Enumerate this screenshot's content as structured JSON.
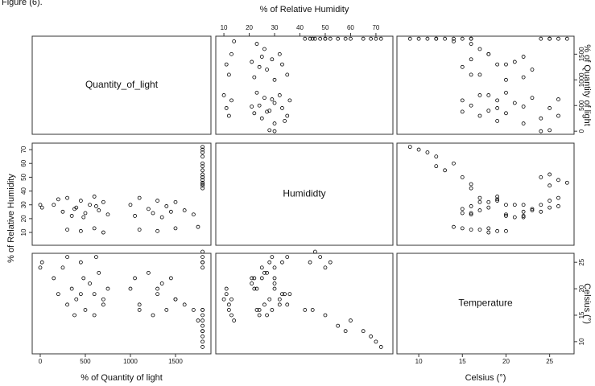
{
  "chart_data": {
    "type": "scatter",
    "caption": "Figure (6).",
    "color": "#000000",
    "variables": [
      "Quantity_of_light",
      "Humididty",
      "Temperature"
    ],
    "data": [
      [
        150,
        250,
        300,
        350,
        400,
        450,
        500,
        550,
        600,
        650,
        700,
        750,
        200,
        380,
        620,
        480,
        300,
        450,
        600,
        700,
        1100,
        1300,
        1500,
        1750,
        1000,
        1050,
        1100,
        1200,
        1250,
        1300,
        1350,
        1400,
        1450,
        1500,
        1600,
        1700,
        1800,
        1800,
        1800,
        1800,
        1800,
        1800,
        1800,
        1800,
        1800,
        1800,
        1800,
        1800,
        1800,
        1800,
        1800,
        0,
        20
      ],
      [
        30,
        25,
        35,
        22,
        28,
        33,
        24,
        30,
        36,
        26,
        32,
        23,
        34,
        27,
        29,
        21,
        12,
        11,
        13,
        10,
        12,
        11,
        13,
        14,
        30,
        22,
        35,
        27,
        24,
        33,
        21,
        29,
        25,
        32,
        26,
        23,
        60,
        65,
        70,
        72,
        55,
        50,
        42,
        68,
        58,
        45,
        48,
        52,
        46,
        50,
        44,
        30,
        28
      ],
      [
        22,
        24,
        26,
        20,
        18,
        25,
        16,
        21,
        19,
        23,
        17,
        20,
        19,
        15,
        26,
        22,
        17,
        19,
        15,
        18,
        16,
        20,
        18,
        14,
        20,
        22,
        17,
        23,
        15,
        19,
        21,
        16,
        22,
        18,
        17,
        16,
        14,
        12,
        10,
        9,
        13,
        15,
        16,
        11,
        12,
        16,
        26,
        25,
        27,
        24,
        25,
        24,
        25
      ]
    ],
    "columns": [
      {
        "xlim": [
          -89,
          1893
        ],
        "xticks": [
          0,
          500,
          1000,
          1500
        ],
        "xlabel": "% of Quantity of light",
        "side": "bottom"
      },
      {
        "xlim": [
          6.8,
          76.7
        ],
        "xticks": [
          10,
          20,
          30,
          40,
          50,
          60,
          70
        ],
        "xlabel": "% of Relative Humidity",
        "side": "top"
      },
      {
        "xlim": [
          7.5,
          27.8
        ],
        "xticks": [
          10,
          15,
          20,
          25
        ],
        "xlabel": "Celsius (°)",
        "side": "bottom"
      }
    ],
    "rows": [
      {
        "ylim": [
          -60,
          1850
        ],
        "yticks": [
          0,
          500,
          1000,
          1500
        ],
        "ylabel": "% of Quantity of light",
        "side": "right"
      },
      {
        "ylim": [
          0.7,
          74.7
        ],
        "yticks": [
          10,
          20,
          30,
          40,
          50,
          60,
          70
        ],
        "ylabel": "% of Relative Humidity",
        "side": "left"
      },
      {
        "ylim": [
          7.7,
          26.7
        ],
        "yticks": [
          10,
          15,
          20,
          25
        ],
        "ylabel": "Celsius (°)",
        "side": "right"
      }
    ]
  }
}
